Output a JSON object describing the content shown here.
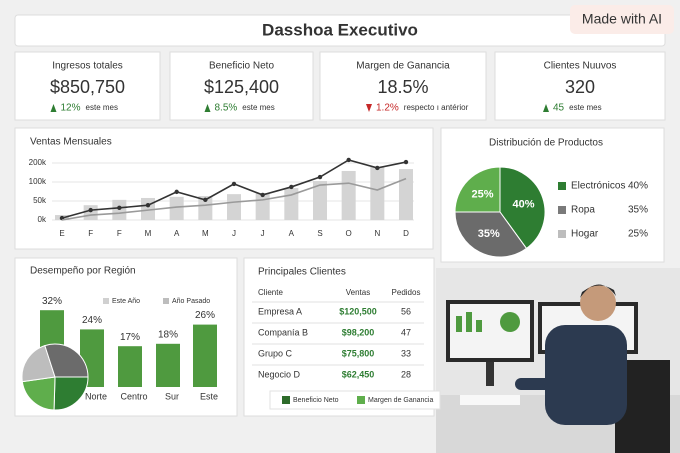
{
  "header": {
    "title": "Dasshoa Executivo",
    "badge": "Made with AI"
  },
  "kpis": [
    {
      "label": "Ingresos totales",
      "value": "$850,750",
      "change": "12%",
      "note": "este mes",
      "trend": "up"
    },
    {
      "label": "Beneficio Neto",
      "value": "$125,400",
      "change": "8.5%",
      "note": "este mes",
      "trend": "up"
    },
    {
      "label": "Margen de Ganancia",
      "value": "18.5%",
      "change": "1.2%",
      "note": "respecto ı antérior",
      "trend": "down"
    },
    {
      "label": "Clientes Nuuvos",
      "value": "320",
      "change": "45",
      "note": "este mes",
      "trend": "up"
    }
  ],
  "sales_chart": {
    "type": "bar-line",
    "title": "Ventas Mensuales",
    "categories": [
      "E",
      "F",
      "F",
      "M",
      "A",
      "M",
      "J",
      "J",
      "A",
      "S",
      "O",
      "N",
      "D"
    ],
    "ylim": [
      0,
      220000
    ],
    "yticks": [
      {
        "value": 0,
        "label": "0k"
      },
      {
        "value": 50000,
        "label": "50k"
      },
      {
        "value": 100000,
        "label": "100k"
      },
      {
        "value": 200000,
        "label": "200k"
      }
    ],
    "grid": true,
    "bars": {
      "color": "#d4d4d4",
      "values": [
        13000,
        39000,
        53000,
        58000,
        61000,
        63000,
        68000,
        71000,
        84000,
        105000,
        158000,
        179000,
        168000
      ]
    },
    "lines": [
      {
        "color": "#333333",
        "values": [
          5000,
          26000,
          32000,
          39000,
          74000,
          53000,
          95000,
          66000,
          87000,
          126000,
          216000,
          174000,
          205000
        ]
      },
      {
        "color": "#9a9a9a",
        "values": [
          0,
          13000,
          18000,
          26000,
          34000,
          39000,
          47000,
          53000,
          66000,
          92000,
          97000,
          79000,
          118000
        ]
      }
    ]
  },
  "product_chart": {
    "type": "pie",
    "title": "Distribución de Productos",
    "categories": [
      "Electrónicos",
      "Ropa",
      "Hogar"
    ],
    "values": [
      40,
      35,
      25
    ],
    "value_labels": [
      "40%",
      "35%",
      "25%"
    ],
    "colors": [
      "#2e7d32",
      "#6b6b6b",
      "#5fae4c"
    ],
    "legend_colors": [
      "#2e7d32",
      "#7a7a7a",
      "#bdbdbd"
    ]
  },
  "region_chart": {
    "type": "bar",
    "title": "Desempeño por Región",
    "categories": [
      null,
      "Norte",
      "Centro",
      "Sur",
      "Este"
    ],
    "values": [
      32,
      24,
      17,
      18,
      26
    ],
    "value_labels": [
      "32%",
      "24%",
      "17%",
      "18%",
      "26%"
    ],
    "ylim": [
      0,
      35
    ],
    "color": "#4f9a3f",
    "legend": [
      {
        "name": "Este Año",
        "color": "#d0d0d0"
      },
      {
        "name": "Año Pasado",
        "color": "#bdbdbd"
      }
    ]
  },
  "clients_table": {
    "title": "Principales Clientes",
    "columns": [
      "Cliente",
      "Ventas",
      "Pedidos"
    ],
    "rows": [
      [
        "Empresa A",
        "$120,500",
        "56"
      ],
      [
        "Companía B",
        "$98,200",
        "47"
      ],
      [
        "Grupo C",
        "$75,800",
        "33"
      ],
      [
        "Negocio D",
        "$62,450",
        "28"
      ]
    ],
    "legend": [
      {
        "name": "Beneficio Neto",
        "color": "#2e6b2a"
      },
      {
        "name": "Margen de Ganancia",
        "color": "#5fae4c"
      }
    ]
  }
}
